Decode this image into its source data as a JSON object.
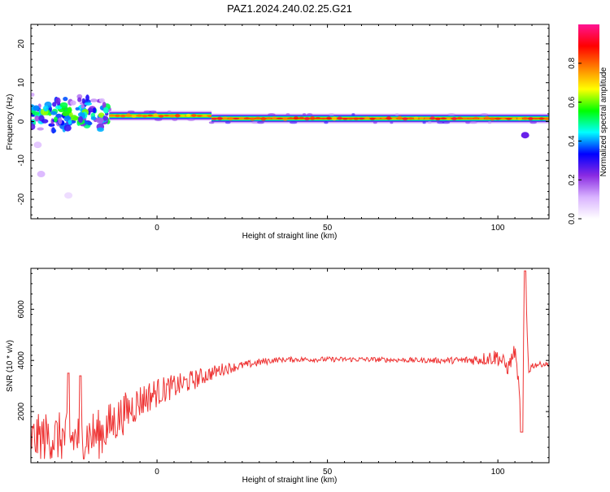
{
  "title": "PAZ1.2024.240.02.25.G21",
  "colorbar": {
    "label": "Normalized spectral amplitude",
    "ticks": [
      "0.0",
      "0.2",
      "0.4",
      "0.6",
      "0.8"
    ],
    "tick_values": [
      0.0,
      0.2,
      0.4,
      0.6,
      0.8
    ],
    "colors": [
      "#ffffff",
      "#d9b3ff",
      "#8a2be2",
      "#0000ff",
      "#00ffff",
      "#00ff00",
      "#ffff00",
      "#ff8000",
      "#ff0000",
      "#ff1493"
    ]
  },
  "chart_data": [
    {
      "type": "heatmap",
      "xlabel": "Height of straight line (km)",
      "ylabel": "Frequency (Hz)",
      "xlim": [
        -37,
        115
      ],
      "ylim": [
        -25,
        25
      ],
      "xticks": [
        0,
        50,
        100
      ],
      "yticks": [
        20,
        10,
        0,
        -10,
        -20
      ],
      "ytick_labels": [
        "20",
        "10",
        "0",
        "-10",
        "-20"
      ],
      "ridge": [
        {
          "x_start": -14,
          "x_end": 16,
          "frequency": 1.5,
          "amplitude": 0.75
        },
        {
          "x_start": 16,
          "x_end": 115,
          "frequency": 0.8,
          "amplitude": 0.8
        }
      ],
      "noisy_region": {
        "x_start": -37,
        "x_end": -14,
        "frequency_range": [
          -8,
          8
        ]
      },
      "blobs": [
        {
          "x": -34,
          "frequency": -13.5,
          "amplitude": 0.1
        },
        {
          "x": -26,
          "frequency": -19,
          "amplitude": 0.05
        },
        {
          "x": -35,
          "frequency": -6,
          "amplitude": 0.08
        },
        {
          "x": 108,
          "frequency": -3.5,
          "amplitude": 0.25
        }
      ]
    },
    {
      "type": "line",
      "xlabel": "Height of straight line (km)",
      "ylabel": "SNR (10 * v/v)",
      "xlim": [
        -37,
        115
      ],
      "ylim": [
        0,
        7600
      ],
      "xticks": [
        0,
        50,
        100
      ],
      "yticks": [
        2000,
        4000,
        6000
      ],
      "series": [
        {
          "color": "#ee3333",
          "x": [
            -37,
            -33,
            -29,
            -25,
            -21,
            -17,
            -13,
            -9,
            -5,
            -1,
            3,
            7,
            11,
            15,
            19,
            23,
            27,
            31,
            35,
            40,
            50,
            60,
            70,
            80,
            90,
            95,
            100,
            103,
            105,
            106,
            107,
            108,
            109,
            110,
            112,
            115
          ],
          "y": [
            900,
            1000,
            1000,
            950,
            1050,
            1100,
            1550,
            2000,
            2400,
            2700,
            2900,
            3050,
            3250,
            3450,
            3650,
            3750,
            3850,
            3950,
            4020,
            4040,
            4040,
            4040,
            4020,
            4000,
            4000,
            4050,
            4150,
            3700,
            4400,
            3200,
            1300,
            7500,
            3600,
            3800,
            3850,
            3850
          ],
          "noise": [
            900,
            1000,
            1000,
            1000,
            1000,
            1000,
            900,
            800,
            700,
            600,
            500,
            450,
            400,
            300,
            250,
            180,
            150,
            150,
            100,
            100,
            100,
            100,
            100,
            100,
            150,
            250,
            350,
            300,
            300,
            200,
            200,
            200,
            200,
            150,
            100,
            100
          ]
        }
      ],
      "spikes": [
        {
          "x": -26,
          "y": 3500
        },
        {
          "x": -22.5,
          "y": 3400
        }
      ]
    }
  ]
}
